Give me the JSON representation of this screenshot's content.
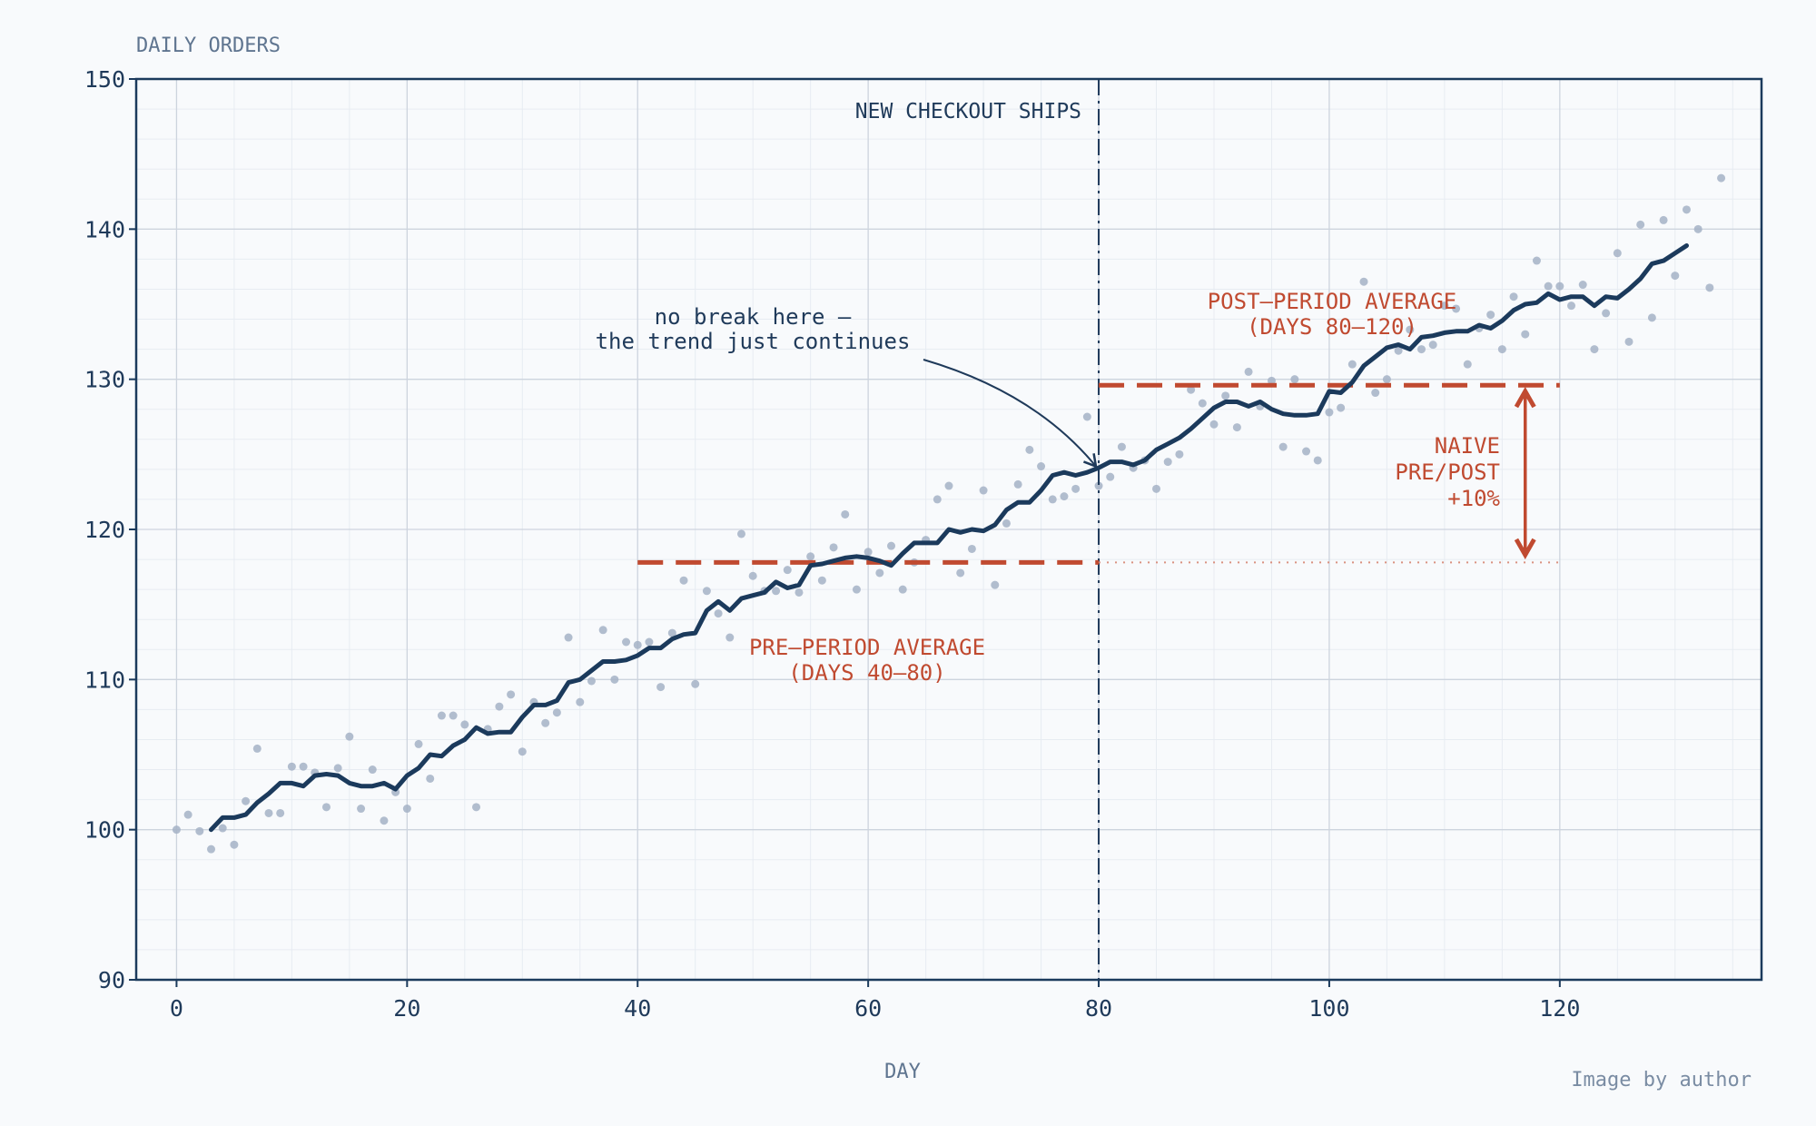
{
  "chart_data": {
    "type": "scatter",
    "title": "DAILY ORDERS",
    "xlabel": "DAY",
    "ylabel": "",
    "xlim": [
      -3.5,
      137.5
    ],
    "ylim": [
      90,
      150
    ],
    "xticks": [
      0,
      20,
      40,
      60,
      80,
      100,
      120
    ],
    "yticks": [
      90,
      100,
      110,
      120,
      130,
      140,
      150
    ],
    "grid": true,
    "series": [
      {
        "kind": "scatter",
        "x": [
          0,
          1,
          2,
          3,
          4,
          5,
          6,
          7,
          8,
          9,
          10,
          11,
          12,
          13,
          14,
          15,
          16,
          17,
          18,
          19,
          20,
          21,
          22,
          23,
          24,
          25,
          26,
          27,
          28,
          29,
          30,
          31,
          32,
          33,
          34,
          35,
          36,
          37,
          38,
          39,
          40,
          41,
          42,
          43,
          44,
          45,
          46,
          47,
          48,
          49,
          50,
          51,
          52,
          53,
          54,
          55,
          56,
          57,
          58,
          59,
          60,
          61,
          62,
          63,
          64,
          65,
          66,
          67,
          68,
          69,
          70,
          71,
          72,
          73,
          74,
          75,
          76,
          77,
          78,
          79,
          80,
          81,
          82,
          83,
          84,
          85,
          86,
          87,
          88,
          89,
          90,
          91,
          92,
          93,
          94,
          95,
          96,
          97,
          98,
          99,
          100,
          101,
          102,
          103,
          104,
          105,
          106,
          107,
          108,
          109,
          110,
          111,
          112,
          113,
          114,
          115,
          116,
          117,
          118,
          119,
          120,
          121,
          122,
          123,
          124,
          125,
          126,
          127,
          128,
          129,
          130,
          131,
          132,
          133,
          134
        ],
        "y": [
          100.0,
          101.0,
          99.9,
          98.7,
          100.1,
          99.0,
          101.9,
          105.4,
          101.1,
          101.1,
          104.2,
          104.2,
          103.8,
          101.5,
          104.1,
          106.2,
          101.4,
          104.0,
          100.6,
          102.5,
          101.4,
          105.7,
          103.4,
          107.6,
          107.6,
          107.0,
          101.5,
          106.7,
          108.2,
          109.0,
          105.2,
          108.5,
          107.1,
          107.8,
          112.8,
          108.5,
          109.9,
          113.3,
          110.0,
          112.5,
          112.3,
          112.5,
          109.5,
          113.1,
          116.6,
          109.7,
          115.9,
          114.4,
          112.8,
          119.7,
          116.9,
          115.9,
          115.9,
          117.3,
          115.8,
          118.2,
          116.6,
          118.8,
          121.0,
          116.0,
          118.5,
          117.1,
          118.9,
          116.0,
          117.8,
          119.3,
          122.0,
          122.9,
          117.1,
          118.7,
          122.6,
          116.3,
          120.4,
          123.0,
          125.3,
          124.2,
          122.0,
          122.2,
          122.7,
          127.5,
          122.9,
          123.5,
          125.5,
          124.1,
          124.6,
          122.7,
          124.5,
          125.0,
          129.3,
          128.4,
          127.0,
          128.9,
          126.8,
          130.5,
          128.2,
          129.9,
          125.5,
          130.0,
          125.2,
          124.6,
          127.8,
          128.1,
          131.0,
          136.5,
          129.1,
          130.0,
          131.9,
          133.3,
          132.0,
          132.3,
          134.9,
          134.7,
          131.0,
          133.4,
          134.3,
          132.0,
          135.5,
          133.0,
          137.9,
          136.2,
          136.2,
          134.9,
          136.3,
          132.0,
          134.4,
          138.4,
          132.5,
          140.3,
          134.1,
          140.6,
          136.9,
          141.3,
          140.0,
          136.1,
          143.4
        ],
        "color": "#a5b2c5"
      },
      {
        "kind": "line",
        "x": [
          3,
          4,
          5,
          6,
          7,
          8,
          9,
          10,
          11,
          12,
          13,
          14,
          15,
          16,
          17,
          18,
          19,
          20,
          21,
          22,
          23,
          24,
          25,
          26,
          27,
          28,
          29,
          30,
          31,
          32,
          33,
          34,
          35,
          36,
          37,
          38,
          39,
          40,
          41,
          42,
          43,
          44,
          45,
          46,
          47,
          48,
          49,
          50,
          51,
          52,
          53,
          54,
          55,
          56,
          57,
          58,
          59,
          60,
          61,
          62,
          63,
          64,
          65,
          66,
          67,
          68,
          69,
          70,
          71,
          72,
          73,
          74,
          75,
          76,
          77,
          78,
          79,
          80,
          81,
          82,
          83,
          84,
          85,
          86,
          87,
          88,
          89,
          90,
          91,
          92,
          93,
          94,
          95,
          96,
          97,
          98,
          99,
          100,
          101,
          102,
          103,
          104,
          105,
          106,
          107,
          108,
          109,
          110,
          111,
          112,
          113,
          114,
          115,
          116,
          117,
          118,
          119,
          120,
          121,
          122,
          123,
          124,
          125,
          126,
          127,
          128,
          129,
          130,
          131
        ],
        "y": [
          100.0,
          100.8,
          100.8,
          101.0,
          101.8,
          102.4,
          103.1,
          103.1,
          102.9,
          103.6,
          103.7,
          103.6,
          103.1,
          102.9,
          102.9,
          103.1,
          102.7,
          103.6,
          104.1,
          105.0,
          104.9,
          105.6,
          106.0,
          106.8,
          106.4,
          106.5,
          106.5,
          107.5,
          108.3,
          108.3,
          108.6,
          109.8,
          110.0,
          110.6,
          111.2,
          111.2,
          111.3,
          111.6,
          112.1,
          112.1,
          112.7,
          113.0,
          113.1,
          114.6,
          115.2,
          114.6,
          115.4,
          115.6,
          115.8,
          116.5,
          116.1,
          116.3,
          117.6,
          117.7,
          117.9,
          118.1,
          118.2,
          118.1,
          117.9,
          117.6,
          118.4,
          119.1,
          119.1,
          119.1,
          120.0,
          119.8,
          120.0,
          119.9,
          120.3,
          121.3,
          121.8,
          121.8,
          122.6,
          123.6,
          123.8,
          123.6,
          123.8,
          124.1,
          124.5,
          124.5,
          124.3,
          124.6,
          125.3,
          125.7,
          126.1,
          126.7,
          127.4,
          128.1,
          128.5,
          128.5,
          128.2,
          128.5,
          128.0,
          127.7,
          127.6,
          127.6,
          127.7,
          129.2,
          129.1,
          129.8,
          130.9,
          131.5,
          132.1,
          132.3,
          132.0,
          132.8,
          132.9,
          133.1,
          133.2,
          133.2,
          133.6,
          133.4,
          133.9,
          134.6,
          135.0,
          135.1,
          135.7,
          135.3,
          135.5,
          135.5,
          134.9,
          135.5,
          135.4,
          136.0,
          136.7,
          137.7,
          137.9,
          138.4,
          138.9
        ],
        "color": "#1b3a5c"
      }
    ],
    "reference_lines": [
      {
        "kind": "vertical",
        "x": 80,
        "style": "dash-dot",
        "label": "NEW CHECKOUT SHIPS"
      },
      {
        "kind": "horizontal",
        "y": 117.8,
        "x_range": [
          40,
          80
        ],
        "style": "dashed",
        "label": "PRE–PERIOD AVERAGE\n(DAYS 40–80)"
      },
      {
        "kind": "horizontal",
        "y": 129.6,
        "x_range": [
          80,
          120
        ],
        "style": "dashed",
        "label": "POST–PERIOD AVERAGE\n(DAYS 80–120)"
      },
      {
        "kind": "horizontal",
        "y": 117.8,
        "x_range": [
          80,
          120
        ],
        "style": "dotted",
        "label": ""
      }
    ],
    "annotations": [
      {
        "text": "no break here —\nthe trend just continues",
        "points_to": [
          80,
          124.2
        ]
      },
      {
        "text": "NAIVE\nPRE/POST\n+10%",
        "arrow_x": 117,
        "arrow_from": 118.3,
        "arrow_to": 129.2
      }
    ],
    "credit": "Image by author"
  }
}
